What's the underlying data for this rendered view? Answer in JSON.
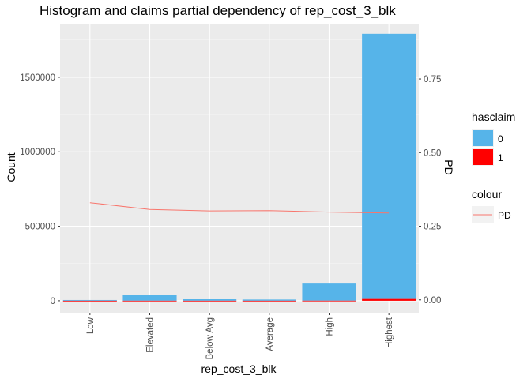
{
  "chart_data": {
    "type": "bar",
    "title": "Histogram and claims partial dependency of rep_cost_3_blk",
    "xlabel": "rep_cost_3_blk",
    "ylabel": "Count",
    "y2label": "PD",
    "categories": [
      "Low",
      "Elevated",
      "Below Avg",
      "Average",
      "High",
      "Highest"
    ],
    "ylim": [
      -80000,
      1860000
    ],
    "y_ticks": [
      0,
      500000,
      1000000,
      1500000
    ],
    "y_tick_labels": [
      "0",
      "500000",
      "1000000",
      "1500000"
    ],
    "y2lim": [
      -0.0435,
      0.9378
    ],
    "y2_ticks": [
      0,
      0.25,
      0.5,
      0.75
    ],
    "y2_tick_labels": [
      "0.00",
      "0.25",
      "0.50",
      "0.75"
    ],
    "grid": true,
    "legend_position": "right",
    "series": [
      {
        "name": "0",
        "kind": "bar",
        "color": "#56B4E9",
        "values": [
          5000,
          40000,
          10000,
          8000,
          115000,
          1780000
        ]
      },
      {
        "name": "1",
        "kind": "bar",
        "color": "#FF0000",
        "values": [
          0,
          200,
          100,
          100,
          500,
          12000
        ]
      },
      {
        "name": "PD",
        "kind": "line",
        "axis": "secondary",
        "color": "#F8766D",
        "values": [
          0.33,
          0.307,
          0.302,
          0.303,
          0.298,
          0.295
        ]
      }
    ]
  },
  "legend": {
    "fill_title": "hasclaim",
    "fill_items": [
      {
        "label": "0",
        "color": "#56B4E9"
      },
      {
        "label": "1",
        "color": "#FF0000"
      }
    ],
    "colour_title": "colour",
    "colour_items": [
      {
        "label": "PD",
        "color": "#F8766D"
      }
    ]
  }
}
